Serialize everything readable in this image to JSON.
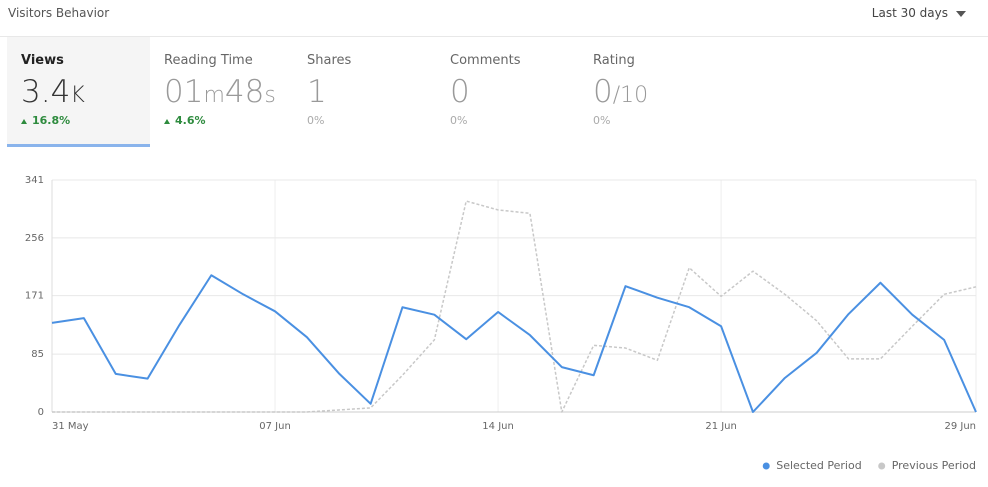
{
  "header": {
    "title": "Visitors Behavior",
    "range": "Last 30 days"
  },
  "metrics": [
    {
      "label": "Views",
      "value_parts": [
        "3.4",
        "K"
      ],
      "change": "16.8%",
      "trend": "up",
      "active": true
    },
    {
      "label": "Reading Time",
      "value_parts": [
        "01",
        "m",
        "48",
        "s"
      ],
      "change": "4.6%",
      "trend": "up",
      "active": false
    },
    {
      "label": "Shares",
      "value_parts": [
        "1"
      ],
      "change": "0%",
      "trend": "flat",
      "active": false
    },
    {
      "label": "Comments",
      "value_parts": [
        "0"
      ],
      "change": "0%",
      "trend": "flat",
      "active": false
    },
    {
      "label": "Rating",
      "value_parts": [
        "0",
        "/10"
      ],
      "change": "0%",
      "trend": "flat",
      "active": false
    }
  ],
  "chart_data": {
    "type": "line",
    "categories": [
      "31 May",
      null,
      null,
      null,
      null,
      null,
      null,
      "07 Jun",
      null,
      null,
      null,
      null,
      null,
      null,
      "14 Jun",
      null,
      null,
      null,
      null,
      null,
      null,
      "21 Jun",
      null,
      null,
      null,
      null,
      null,
      null,
      null,
      "29 Jun"
    ],
    "series": [
      {
        "name": "Selected Period",
        "color": "#4a90e2",
        "dashed": false,
        "values": [
          131,
          138,
          56,
          49,
          128,
          201,
          173,
          148,
          110,
          57,
          12,
          154,
          143,
          107,
          147,
          113,
          66,
          54,
          185,
          168,
          154,
          126,
          0,
          50,
          87,
          144,
          190,
          143,
          106,
          0
        ]
      },
      {
        "name": "Previous Period",
        "color": "#c8c8c8",
        "dashed": true,
        "values": [
          0,
          0,
          0,
          0,
          0,
          0,
          0,
          0,
          0,
          3,
          6,
          54,
          106,
          310,
          297,
          292,
          0,
          98,
          94,
          76,
          212,
          170,
          207,
          173,
          134,
          78,
          78,
          126,
          173,
          184
        ]
      }
    ],
    "ylim": [
      0,
      341
    ],
    "yticks": [
      0,
      85,
      171,
      256,
      341
    ],
    "grid": true,
    "legend": "bottom-right"
  }
}
